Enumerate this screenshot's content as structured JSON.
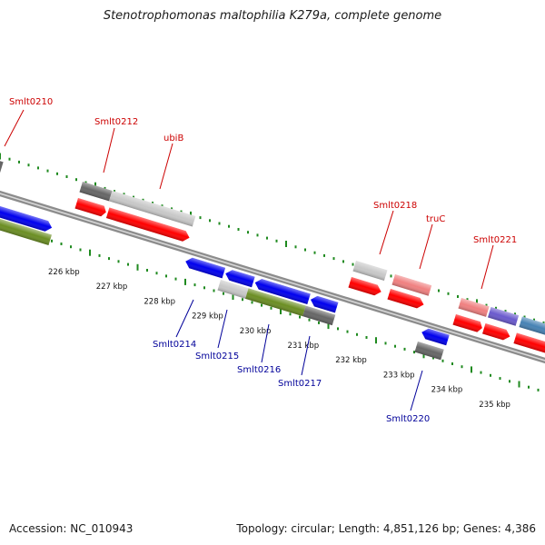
{
  "title": "Stenotrophomonas maltophilia K279a, complete genome",
  "footer": {
    "accession": "Accession: NC_010943",
    "stats": "Topology: circular; Length: 4,851,126 bp; Genes: 4,386"
  },
  "scale_labels": [
    "226 kbp",
    "227 kbp",
    "228 kbp",
    "229 kbp",
    "230 kbp",
    "231 kbp",
    "232 kbp",
    "233 kbp",
    "234 kbp",
    "235 kbp"
  ],
  "gene_labels_top": [
    "Smlt0210",
    "Smlt0212",
    "ubiB",
    "Smlt0218",
    "truC",
    "Smlt0221"
  ],
  "gene_labels_bottom": [
    "Smlt0214",
    "Smlt0215",
    "Smlt0216",
    "Smlt0217",
    "Smlt0220"
  ],
  "colors": {
    "backbone": "#8c8c8c",
    "tick": "#1f8a1f",
    "red": "#ff0000",
    "pink": "#f08080",
    "blue": "#0000ee",
    "olive": "#6b8e23",
    "dark_gray": "#666666",
    "light_gray": "#c8c8c8",
    "purple": "#6a5acd",
    "steel_blue": "#4682b4",
    "label_top": "#cc0000",
    "label_bottom": "#000099"
  }
}
